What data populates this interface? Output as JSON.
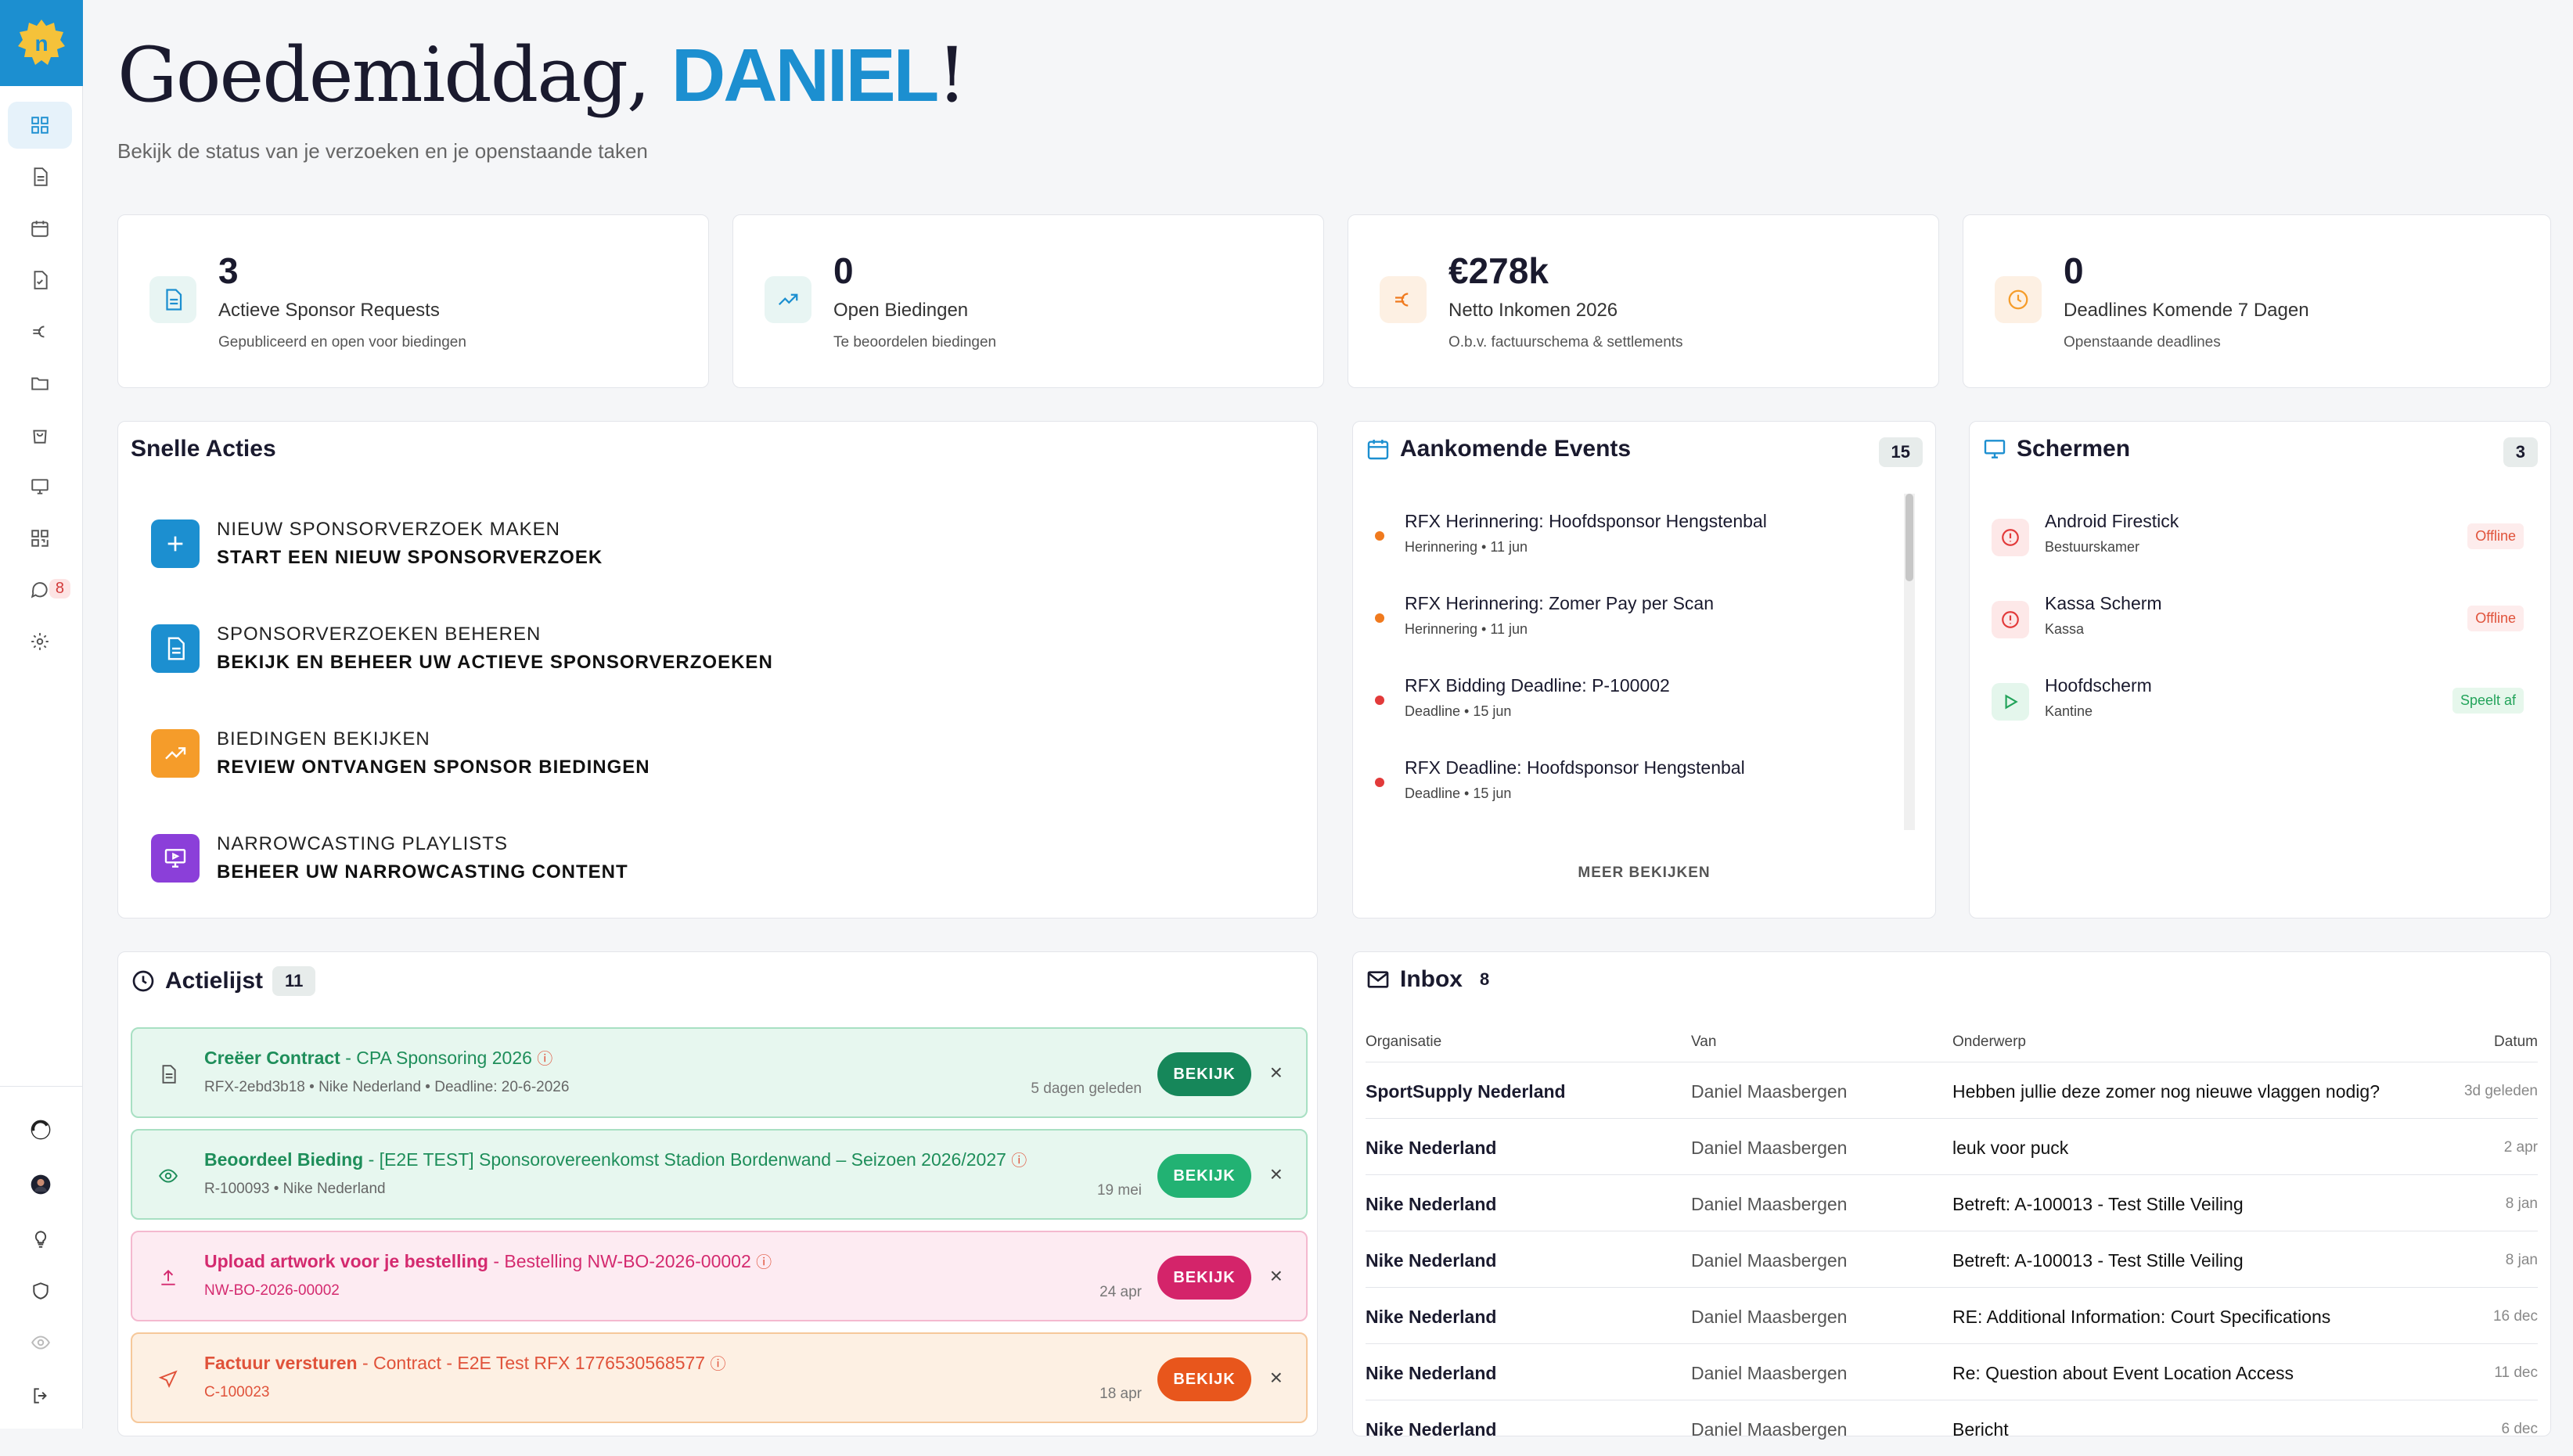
{
  "sidebar": {
    "logo": "n",
    "messages_badge": "8"
  },
  "header": {
    "greeting": "Goedemiddag,",
    "name": "DANIEL",
    "exclaim": "!",
    "subtitle": "Bekijk de status van je verzoeken en je openstaande taken"
  },
  "stats": [
    {
      "value": "3",
      "label": "Actieve Sponsor Requests",
      "sub": "Gepubliceerd en open voor biedingen",
      "icon": "document-icon"
    },
    {
      "value": "0",
      "label": "Open Biedingen",
      "sub": "Te beoordelen biedingen",
      "icon": "trending-up-icon"
    },
    {
      "value": "€278k",
      "label": "Netto Inkomen 2026",
      "sub": "O.b.v. factuurschema & settlements",
      "icon": "euro-icon"
    },
    {
      "value": "0",
      "label": "Deadlines Komende 7 Dagen",
      "sub": "Openstaande deadlines",
      "icon": "clock-icon"
    }
  ],
  "quick": {
    "title": "Snelle Acties",
    "items": [
      {
        "t1": "NIEUW SPONSORVERZOEK MAKEN",
        "t2": "START EEN NIEUW SPONSORVERZOEK",
        "color": "#1c8fd0"
      },
      {
        "t1": "SPONSORVERZOEKEN BEHEREN",
        "t2": "BEKIJK EN BEHEER UW ACTIEVE SPONSORVERZOEKEN",
        "color": "#1c8fd0"
      },
      {
        "t1": "BIEDINGEN BEKIJKEN",
        "t2": "REVIEW ONTVANGEN SPONSOR BIEDINGEN",
        "color": "#f59c2a"
      },
      {
        "t1": "NARROWCASTING PLAYLISTS",
        "t2": "BEHEER UW NARROWCASTING CONTENT",
        "color": "#8b3fd9"
      }
    ]
  },
  "events": {
    "title": "Aankomende Events",
    "count": "15",
    "more": "MEER BEKIJKEN",
    "items": [
      {
        "title": "RFX Herinnering: Hoofdsponsor Hengstenbal",
        "sub": "Herinnering • 11 jun",
        "color": "#f07a1e"
      },
      {
        "title": "RFX Herinnering: Zomer Pay per Scan",
        "sub": "Herinnering • 11 jun",
        "color": "#f07a1e"
      },
      {
        "title": "RFX Bidding Deadline: P-100002",
        "sub": "Deadline • 15 jun",
        "color": "#e23a3a"
      },
      {
        "title": "RFX Deadline: Hoofdsponsor Hengstenbal",
        "sub": "Deadline • 15 jun",
        "color": "#e23a3a"
      }
    ]
  },
  "screens": {
    "title": "Schermen",
    "count": "3",
    "items": [
      {
        "title": "Android Firestick",
        "sub": "Bestuurskamer",
        "status": "Offline",
        "kind": "off"
      },
      {
        "title": "Kassa Scherm",
        "sub": "Kassa",
        "status": "Offline",
        "kind": "off"
      },
      {
        "title": "Hoofdscherm",
        "sub": "Kantine",
        "status": "Speelt af",
        "kind": "on"
      }
    ]
  },
  "actions": {
    "title": "Actielijst",
    "count": "11",
    "items": [
      {
        "title": "Creëer Contract",
        "detail": " - CPA Sponsoring 2026",
        "meta": "RFX-2ebd3b18   • Nike Nederland   • Deadline: 20-6-2026",
        "date": "5 dagen geleden",
        "button": "BEKIJK",
        "theme": "green"
      },
      {
        "title": "Beoordeel Bieding",
        "detail": " - [E2E TEST] Sponsorovereenkomst Stadion Bordenwand – Seizoen 2026/2027",
        "meta": "R-100093   • Nike Nederland",
        "date": "19 mei",
        "button": "BEKIJK",
        "theme": "green2"
      },
      {
        "title": "Upload artwork voor je bestelling",
        "detail": " - Bestelling NW-BO-2026-00002",
        "meta": "NW-BO-2026-00002",
        "date": "24 apr",
        "button": "BEKIJK",
        "theme": "pink"
      },
      {
        "title": "Factuur versturen",
        "detail": " - Contract - E2E Test RFX 1776530568577",
        "meta": "C-100023",
        "date": "18 apr",
        "button": "BEKIJK",
        "theme": "orange"
      }
    ]
  },
  "inbox": {
    "title": "Inbox",
    "count": "8",
    "headers": {
      "org": "Organisatie",
      "from": "Van",
      "subject": "Onderwerp",
      "date": "Datum"
    },
    "rows": [
      {
        "org": "SportSupply Nederland",
        "from": "Daniel Maasbergen",
        "subject": "Hebben jullie deze zomer nog nieuwe vlaggen nodig?",
        "date": "3d geleden"
      },
      {
        "org": "Nike Nederland",
        "from": "Daniel Maasbergen",
        "subject": "leuk voor puck",
        "date": "2 apr"
      },
      {
        "org": "Nike Nederland",
        "from": "Daniel Maasbergen",
        "subject": "Betreft: A-100013 - Test Stille Veiling",
        "date": "8 jan"
      },
      {
        "org": "Nike Nederland",
        "from": "Daniel Maasbergen",
        "subject": "Betreft: A-100013 - Test Stille Veiling",
        "date": "8 jan"
      },
      {
        "org": "Nike Nederland",
        "from": "Daniel Maasbergen",
        "subject": "RE: Additional Information: Court Specifications",
        "date": "16 dec"
      },
      {
        "org": "Nike Nederland",
        "from": "Daniel Maasbergen",
        "subject": "Re: Question about Event Location Access",
        "date": "11 dec"
      },
      {
        "org": "Nike Nederland",
        "from": "Daniel Maasbergen",
        "subject": "Bericht",
        "date": "6 dec"
      }
    ]
  }
}
